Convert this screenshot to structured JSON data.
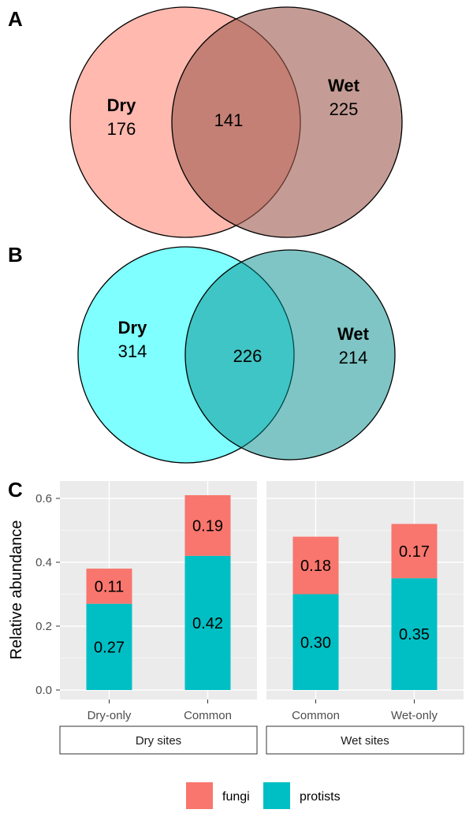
{
  "panels": {
    "a": "A",
    "b": "B",
    "c": "C"
  },
  "venn": [
    {
      "left": {
        "name": "Dry",
        "count": "176",
        "color": "#FF8A7A"
      },
      "right": {
        "name": "Wet",
        "count": "225",
        "color": "#9C5A4E"
      },
      "overlap": "141"
    },
    {
      "left": {
        "name": "Dry",
        "count": "314",
        "color": "#00FFFF"
      },
      "right": {
        "name": "Wet",
        "count": "214",
        "color": "#008B8B"
      },
      "overlap": "226"
    }
  ],
  "chart_data": {
    "type": "bar",
    "stacked": true,
    "ylabel": "Relative abundance",
    "ylim": [
      0,
      0.65
    ],
    "yticks": [
      "0.0",
      "0.2",
      "0.4",
      "0.6"
    ],
    "grid": true,
    "legend_position": "bottom",
    "facets": [
      {
        "name": "Dry sites",
        "categories": [
          "Dry-only",
          "Common"
        ],
        "series": [
          {
            "name": "protists",
            "values": [
              0.27,
              0.42
            ],
            "labels": [
              "0.27",
              "0.42"
            ]
          },
          {
            "name": "fungi",
            "values": [
              0.11,
              0.19
            ],
            "labels": [
              "0.11",
              "0.19"
            ]
          }
        ]
      },
      {
        "name": "Wet sites",
        "categories": [
          "Common",
          "Wet-only"
        ],
        "series": [
          {
            "name": "protists",
            "values": [
              0.3,
              0.35
            ],
            "labels": [
              "0.30",
              "0.35"
            ]
          },
          {
            "name": "fungi",
            "values": [
              0.18,
              0.17
            ],
            "labels": [
              "0.18",
              "0.17"
            ]
          }
        ]
      }
    ],
    "legend": [
      {
        "name": "fungi",
        "color": "#F8766D"
      },
      {
        "name": "protists",
        "color": "#00BFC4"
      }
    ]
  }
}
